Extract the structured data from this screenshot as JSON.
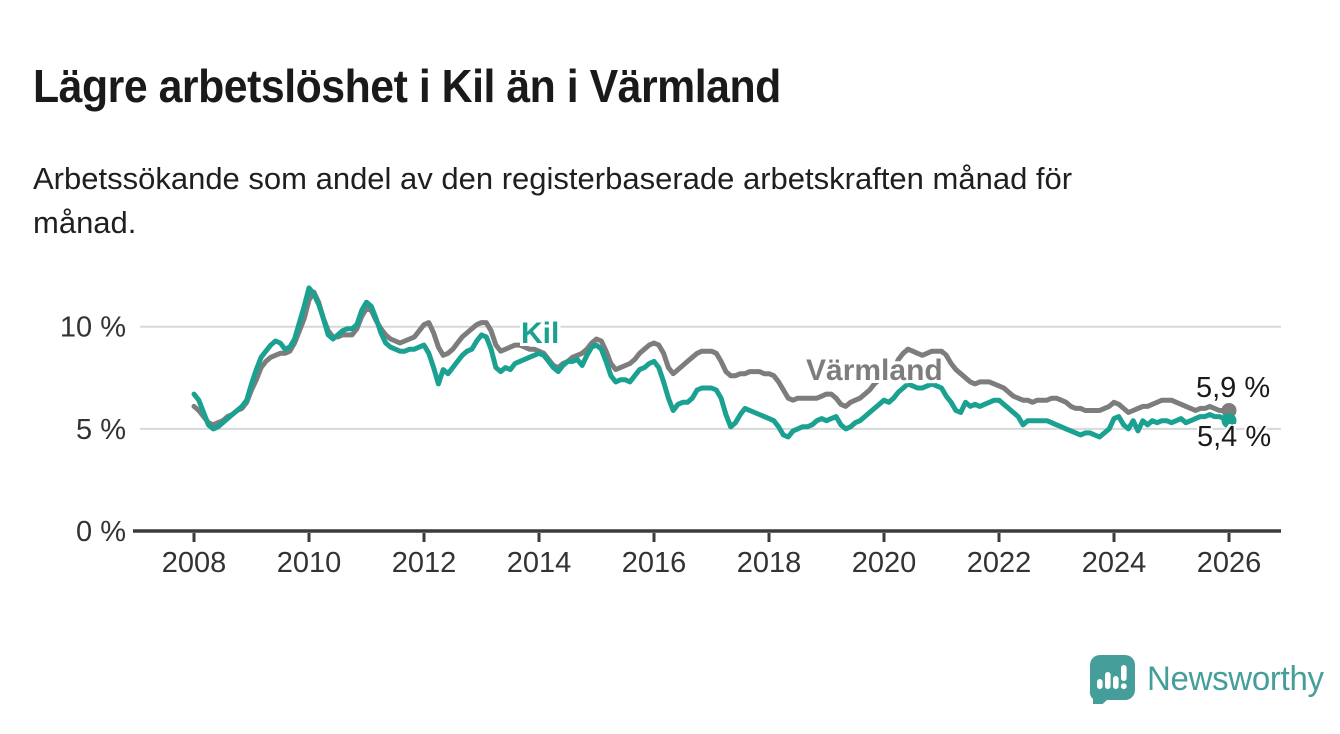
{
  "header": {
    "title": "Lägre arbetslöshet i Kil än i Värmland",
    "subtitle": "Arbetssökande som andel av den registerbaserade arbetskraften månad för månad."
  },
  "footer": {
    "brand": "Newsworthy"
  },
  "colors": {
    "kil_line": "#1aa191",
    "varmland_line": "#7d7d7d",
    "axis": "#3b3b3b",
    "grid": "#d8d8d8",
    "text": "#1a1a1a",
    "brand_teal": "#459e99"
  },
  "chart_data": {
    "type": "line",
    "title": "Lägre arbetslöshet i Kil än i Värmland",
    "subtitle": "Arbetssökande som andel av den registerbaserade arbetskraften månad för månad.",
    "unit": "%",
    "frequency": "monthly",
    "period_start": "2008-01",
    "period_end": "2026-01",
    "legend": "inline-labels",
    "x_axis": {
      "tick_years": [
        2008,
        2010,
        2012,
        2014,
        2016,
        2018,
        2020,
        2022,
        2024,
        2026
      ],
      "range": [
        2008,
        2026.25
      ]
    },
    "y_axis": {
      "ticks": [
        {
          "value": 0,
          "label": "0 %"
        },
        {
          "value": 5,
          "label": "5 %"
        },
        {
          "value": 10,
          "label": "10 %"
        }
      ],
      "range": [
        0,
        12.5
      ],
      "grid": true
    },
    "series": [
      {
        "name": "Värmland",
        "label": "Värmland",
        "color": "#7d7d7d",
        "end_label": "5,9 %",
        "latest_value": 5.9,
        "values": [
          6.1,
          5.9,
          5.6,
          5.3,
          5.2,
          5.3,
          5.4,
          5.6,
          5.7,
          5.9,
          6.0,
          6.3,
          6.9,
          7.4,
          8.0,
          8.3,
          8.5,
          8.6,
          8.7,
          8.7,
          8.8,
          9.2,
          9.8,
          10.4,
          11.3,
          11.7,
          11.2,
          10.4,
          9.8,
          9.5,
          9.5,
          9.6,
          9.6,
          9.6,
          9.9,
          10.5,
          10.9,
          10.8,
          10.3,
          9.9,
          9.6,
          9.4,
          9.3,
          9.2,
          9.3,
          9.4,
          9.5,
          9.8,
          10.1,
          10.2,
          9.7,
          9.0,
          8.6,
          8.7,
          8.9,
          9.2,
          9.5,
          9.7,
          9.9,
          10.1,
          10.2,
          10.2,
          9.8,
          9.1,
          8.8,
          8.9,
          9.0,
          9.1,
          9.1,
          9.0,
          8.9,
          8.9,
          8.8,
          8.7,
          8.4,
          8.1,
          8.0,
          8.2,
          8.3,
          8.5,
          8.6,
          8.7,
          8.9,
          9.2,
          9.4,
          9.3,
          8.8,
          8.2,
          7.9,
          8.0,
          8.1,
          8.2,
          8.4,
          8.7,
          8.9,
          9.1,
          9.2,
          9.1,
          8.7,
          8.0,
          7.7,
          7.9,
          8.1,
          8.3,
          8.5,
          8.7,
          8.8,
          8.8,
          8.8,
          8.7,
          8.3,
          7.8,
          7.6,
          7.6,
          7.7,
          7.7,
          7.8,
          7.8,
          7.8,
          7.7,
          7.7,
          7.6,
          7.3,
          6.9,
          6.5,
          6.4,
          6.5,
          6.5,
          6.5,
          6.5,
          6.5,
          6.6,
          6.7,
          6.7,
          6.5,
          6.2,
          6.1,
          6.3,
          6.4,
          6.5,
          6.7,
          6.9,
          7.2,
          7.4,
          7.6,
          7.6,
          7.9,
          8.4,
          8.7,
          8.9,
          8.8,
          8.7,
          8.6,
          8.7,
          8.8,
          8.8,
          8.8,
          8.6,
          8.2,
          7.9,
          7.7,
          7.5,
          7.3,
          7.2,
          7.3,
          7.3,
          7.3,
          7.2,
          7.1,
          7.0,
          6.8,
          6.6,
          6.5,
          6.4,
          6.4,
          6.3,
          6.4,
          6.4,
          6.4,
          6.5,
          6.5,
          6.4,
          6.3,
          6.1,
          6.0,
          6.0,
          5.9,
          5.9,
          5.9,
          5.9,
          6.0,
          6.1,
          6.3,
          6.2,
          6.0,
          5.8,
          5.9,
          6.0,
          6.1,
          6.1,
          6.2,
          6.3,
          6.4,
          6.4,
          6.4,
          6.3,
          6.2,
          6.1,
          6.0,
          5.9,
          6.0,
          6.0,
          6.1,
          6.0,
          5.9,
          5.9,
          5.9
        ]
      },
      {
        "name": "Kil",
        "label": "Kil",
        "color": "#1aa191",
        "end_label": "5,4 %",
        "latest_value": 5.4,
        "values": [
          6.7,
          6.4,
          5.8,
          5.2,
          5.0,
          5.1,
          5.3,
          5.5,
          5.7,
          5.9,
          6.1,
          6.4,
          7.2,
          7.9,
          8.5,
          8.8,
          9.1,
          9.3,
          9.2,
          8.9,
          9.0,
          9.4,
          10.2,
          11.0,
          11.9,
          11.6,
          11.1,
          10.4,
          9.6,
          9.4,
          9.6,
          9.8,
          9.9,
          9.9,
          10.1,
          10.8,
          11.2,
          11.0,
          10.4,
          9.7,
          9.2,
          9.0,
          8.9,
          8.8,
          8.8,
          8.9,
          8.9,
          9.0,
          9.1,
          8.7,
          8.0,
          7.2,
          7.9,
          7.7,
          8.0,
          8.3,
          8.6,
          8.8,
          8.9,
          9.3,
          9.6,
          9.5,
          8.9,
          8.0,
          7.8,
          8.0,
          7.9,
          8.2,
          8.3,
          8.4,
          8.5,
          8.6,
          8.7,
          8.6,
          8.3,
          8.0,
          7.8,
          8.1,
          8.3,
          8.3,
          8.4,
          8.1,
          8.6,
          9.0,
          9.1,
          8.9,
          8.3,
          7.6,
          7.3,
          7.4,
          7.4,
          7.3,
          7.6,
          7.9,
          8.0,
          8.2,
          8.3,
          8.0,
          7.3,
          6.5,
          5.9,
          6.2,
          6.3,
          6.3,
          6.5,
          6.9,
          7.0,
          7.0,
          7.0,
          6.9,
          6.5,
          5.7,
          5.1,
          5.3,
          5.7,
          6.0,
          5.9,
          5.8,
          5.7,
          5.6,
          5.5,
          5.4,
          5.1,
          4.7,
          4.6,
          4.9,
          5.0,
          5.1,
          5.1,
          5.2,
          5.4,
          5.5,
          5.4,
          5.5,
          5.6,
          5.2,
          5.0,
          5.1,
          5.3,
          5.4,
          5.6,
          5.8,
          6.0,
          6.2,
          6.4,
          6.3,
          6.5,
          6.8,
          7.0,
          7.2,
          7.1,
          7.0,
          7.0,
          7.1,
          7.2,
          7.1,
          7.0,
          6.6,
          6.3,
          5.9,
          5.8,
          6.3,
          6.1,
          6.2,
          6.1,
          6.2,
          6.3,
          6.4,
          6.4,
          6.2,
          6.0,
          5.8,
          5.6,
          5.2,
          5.4,
          5.4,
          5.4,
          5.4,
          5.4,
          5.3,
          5.2,
          5.1,
          5.0,
          4.9,
          4.8,
          4.7,
          4.8,
          4.8,
          4.7,
          4.6,
          4.8,
          5.0,
          5.5,
          5.6,
          5.2,
          5.0,
          5.4,
          4.9,
          5.4,
          5.2,
          5.4,
          5.3,
          5.4,
          5.4,
          5.3,
          5.4,
          5.5,
          5.3,
          5.4,
          5.5,
          5.6,
          5.6,
          5.7,
          5.6,
          5.6,
          5.5,
          5.4
        ]
      }
    ]
  }
}
